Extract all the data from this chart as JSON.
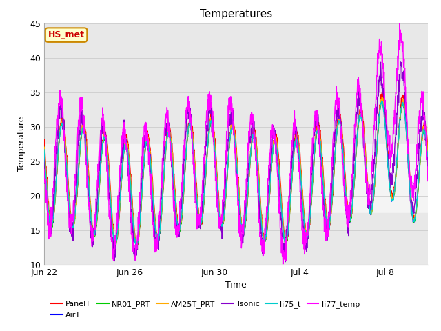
{
  "title": "Temperatures",
  "xlabel": "Time",
  "ylabel": "Temperature",
  "ylim": [
    10,
    45
  ],
  "n_days": 18,
  "xtick_labels": [
    "Jun 22",
    "Jun 26",
    "Jun 30",
    "Jul 4",
    "Jul 8"
  ],
  "xtick_positions": [
    0,
    4,
    8,
    12,
    16
  ],
  "ytick_positions": [
    10,
    15,
    20,
    25,
    30,
    35,
    40,
    45
  ],
  "series_names": [
    "PanelT",
    "AirT",
    "NR01_PRT",
    "AM25T_PRT",
    "Tsonic",
    "li75_t",
    "li77_temp"
  ],
  "series_colors": [
    "#ff0000",
    "#0000ff",
    "#00cc00",
    "#ffaa00",
    "#8800cc",
    "#00cccc",
    "#ff00ff"
  ],
  "series_linewidths": [
    1.0,
    1.0,
    1.0,
    1.0,
    1.0,
    1.0,
    1.0
  ],
  "shaded_bands": [
    {
      "ymin": 37.5,
      "ymax": 45,
      "color": "#e8e8e8"
    },
    {
      "ymin": 27.5,
      "ymax": 37.5,
      "color": "#e8e8e8"
    },
    {
      "ymin": 17.5,
      "ymax": 27.5,
      "color": "#f4f4f4"
    },
    {
      "ymin": 10,
      "ymax": 17.5,
      "color": "#e8e8e8"
    }
  ],
  "annotation_text": "HS_met",
  "annotation_color": "#cc0000",
  "annotation_bg": "#ffffcc",
  "annotation_border": "#cc8800",
  "background_color": "#ffffff",
  "legend_ncol": 6,
  "legend_fontsize": 8,
  "title_fontsize": 11,
  "axis_label_fontsize": 9,
  "tick_labelsize": 9,
  "figsize": [
    6.4,
    4.8
  ],
  "dpi": 100
}
